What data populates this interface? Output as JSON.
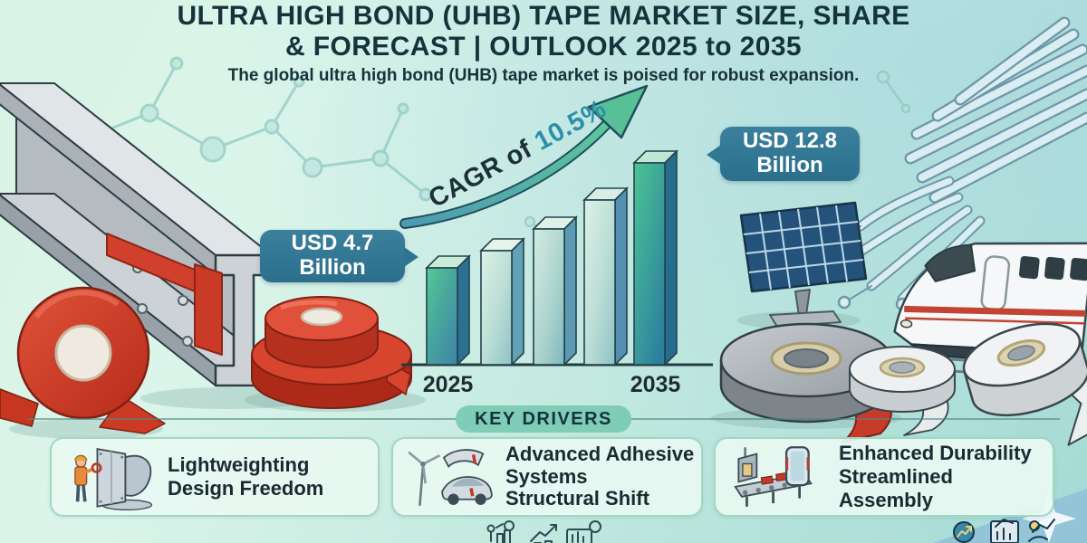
{
  "header": {
    "title_line1": "ULTRA HIGH BOND (UHB) TAPE MARKET SIZE, SHARE",
    "title_line2": "& FORECAST | OUTLOOK 2025 to 2035",
    "subtitle": "The global ultra high bond (UHB) tape market is poised for robust expansion."
  },
  "chart_data": {
    "type": "bar",
    "title": "Ultra high bond (UHB) tape market size outlook 2025 to 2035",
    "unit": "USD Billion",
    "x_tick_labels": [
      "2025",
      "2035"
    ],
    "bars": [
      {
        "x_label": "2025",
        "value": 4.7
      },
      {
        "x_label": "",
        "value": 6.0
      },
      {
        "x_label": "",
        "value": 7.7
      },
      {
        "x_label": "",
        "value": 9.9
      },
      {
        "x_label": "2035",
        "value": 12.8
      }
    ],
    "start_value_label": "USD 4.7 Billion",
    "end_value_label": "USD 12.8 Billion",
    "cagr_annotation": "CAGR of 10.5%",
    "axis": {
      "y_axis_visible": false,
      "gridlines": false,
      "baseline_visible": true
    }
  },
  "callouts": {
    "start": {
      "line1": "USD 4.7",
      "line2": "Billion"
    },
    "end": {
      "line1": "USD 12.8",
      "line2": "Billion"
    }
  },
  "cagr": {
    "prefix": "CAGR of ",
    "value": "10.5%"
  },
  "key_drivers": {
    "heading": "KEY DRIVERS",
    "items": [
      {
        "icon": "worker-bonding-panel-icon",
        "lines": [
          "Lightweighting",
          "Design Freedom"
        ]
      },
      {
        "icon": "wind-turbine-and-car-icon",
        "lines": [
          "Advanced Adhesive Systems",
          "Structural Shift"
        ]
      },
      {
        "icon": "assembly-line-and-phone-icon",
        "lines": [
          "Enhanced Durability",
          "Streamlined Assembly"
        ]
      }
    ]
  },
  "illustrations": [
    "molecule-network-icon",
    "steel-i-beam-with-red-tape",
    "red-tape-roll",
    "red-tape-roll-stack",
    "fiber-optic-bundle-icon",
    "high-speed-train-icon",
    "solar-panel-icon",
    "grey-tape-roll-red-liner",
    "white-tape-roll",
    "white-tape-roll-unwound",
    "market-growth-icons",
    "sparkle-icon"
  ],
  "colors": {
    "title_text": "#14333b",
    "callout_bg": "#2f7490",
    "pill_bg": "#7fcdb7",
    "card_bg": "#e9f8f2",
    "card_border": "#9fd8c5",
    "bar_green": "#4ec28e",
    "bar_blue": "#3e86a8",
    "bar_light": "#c9e7dc",
    "arrow_teal": "#4e9ab2",
    "tape_red": "#cf3a28",
    "cagr_value_text": "#2b8fa9"
  }
}
